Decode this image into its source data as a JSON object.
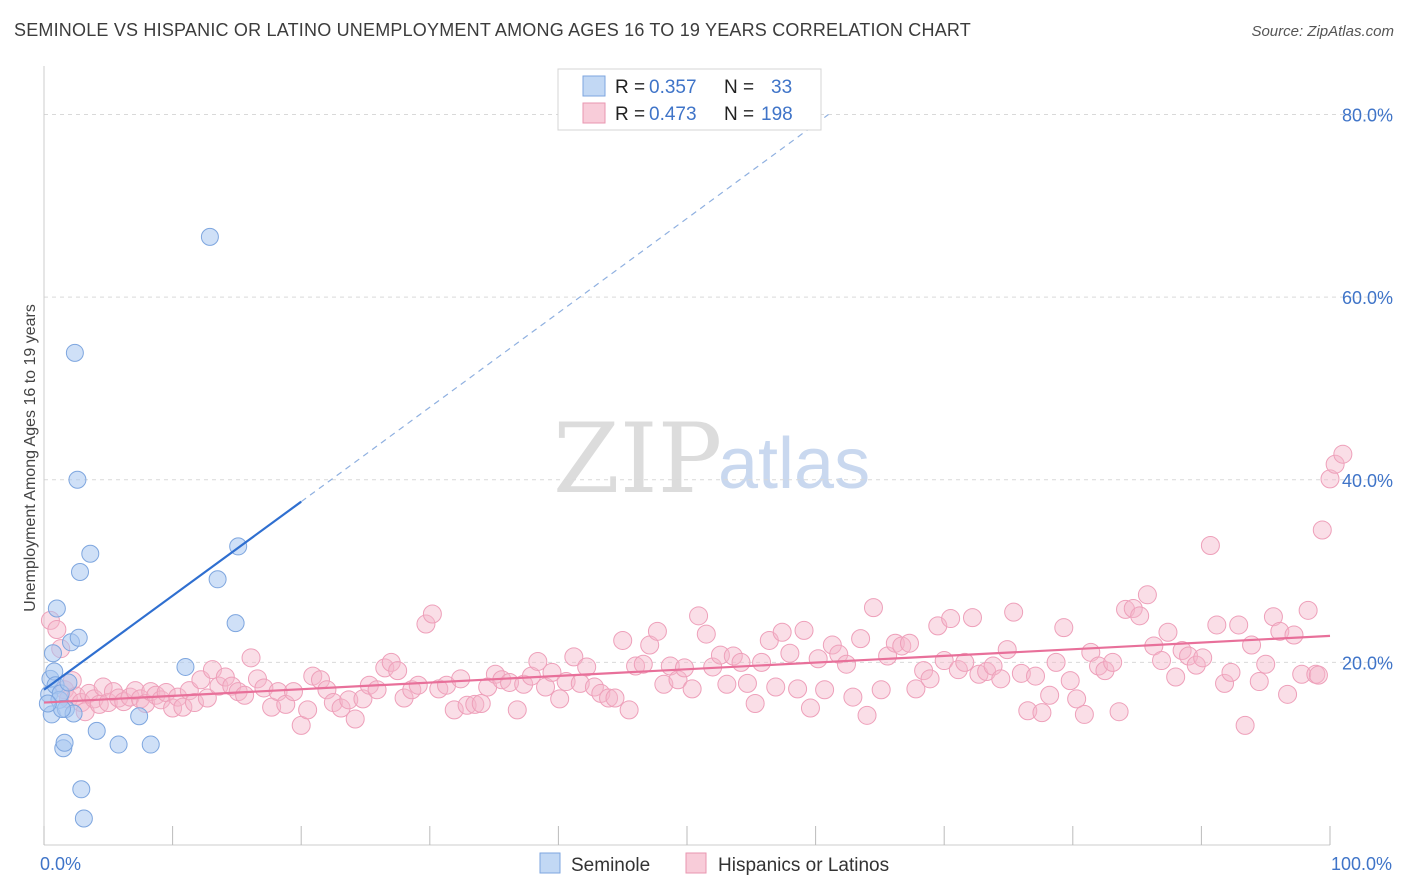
{
  "title": "SEMINOLE VS HISPANIC OR LATINO UNEMPLOYMENT AMONG AGES 16 TO 19 YEARS CORRELATION CHART",
  "source": "Source: ZipAtlas.com",
  "watermark": {
    "zip": "ZIP",
    "atlas": "atlas"
  },
  "chart_data": {
    "type": "scatter",
    "title": "SEMINOLE VS HISPANIC OR LATINO UNEMPLOYMENT AMONG AGES 16 TO 19 YEARS CORRELATION CHART",
    "xlabel": "",
    "ylabel": "Unemployment Among Ages 16 to 19 years",
    "xlim": [
      0,
      100
    ],
    "ylim": [
      0,
      84
    ],
    "x_tick_labels": [
      "0.0%",
      "100.0%"
    ],
    "y_ticks": [
      20,
      40,
      60,
      80
    ],
    "y_tick_labels": [
      "20.0%",
      "40.0%",
      "60.0%",
      "80.0%"
    ],
    "grid": "horizontal dashed",
    "legend_position": "top-center",
    "colors": {
      "seminole": "#a8c7f0",
      "seminole_line": "#2f6fd0",
      "hispanic": "#f5b6c9",
      "hispanic_line": "#e8709a",
      "accent": "#3f74c8"
    },
    "series": [
      {
        "name": "Seminole",
        "R": "0.357",
        "N": "33",
        "trend": {
          "x": [
            0,
            20
          ],
          "y": [
            17.0,
            37.6
          ],
          "dashed_to": [
            61,
            80
          ]
        },
        "points": [
          [
            0.4,
            16.5
          ],
          [
            0.5,
            18.2
          ],
          [
            0.6,
            14.3
          ],
          [
            0.7,
            21.0
          ],
          [
            0.8,
            19.0
          ],
          [
            0.9,
            17.5
          ],
          [
            1.0,
            25.9
          ],
          [
            1.2,
            15.9
          ],
          [
            1.3,
            16.6
          ],
          [
            1.5,
            10.6
          ],
          [
            1.6,
            11.2
          ],
          [
            1.7,
            14.9
          ],
          [
            1.9,
            17.8
          ],
          [
            2.1,
            22.2
          ],
          [
            2.3,
            14.4
          ],
          [
            2.4,
            53.9
          ],
          [
            2.6,
            40.0
          ],
          [
            2.7,
            22.7
          ],
          [
            2.8,
            29.9
          ],
          [
            2.9,
            6.1
          ],
          [
            3.1,
            2.9
          ],
          [
            3.6,
            31.9
          ],
          [
            4.1,
            12.5
          ],
          [
            5.8,
            11.0
          ],
          [
            7.4,
            14.1
          ],
          [
            8.3,
            11.0
          ],
          [
            11.0,
            19.5
          ],
          [
            12.9,
            66.6
          ],
          [
            13.5,
            29.1
          ],
          [
            14.9,
            24.3
          ],
          [
            15.1,
            32.7
          ],
          [
            1.4,
            14.9
          ],
          [
            0.3,
            15.5
          ]
        ]
      },
      {
        "name": "Hispanics or Latinos",
        "R": "0.473",
        "N": "198",
        "trend": {
          "x": [
            0,
            100
          ],
          "y": [
            15.6,
            22.9
          ]
        },
        "points": [
          [
            0.5,
            24.6
          ],
          [
            1.0,
            23.6
          ],
          [
            1.3,
            21.5
          ],
          [
            1.6,
            17.0
          ],
          [
            1.9,
            16.0
          ],
          [
            2.2,
            18.0
          ],
          [
            2.5,
            16.3
          ],
          [
            2.9,
            15.6
          ],
          [
            3.2,
            14.6
          ],
          [
            3.5,
            16.6
          ],
          [
            3.9,
            16.0
          ],
          [
            4.3,
            15.4
          ],
          [
            4.6,
            17.3
          ],
          [
            5.0,
            15.6
          ],
          [
            5.4,
            16.8
          ],
          [
            5.8,
            16.1
          ],
          [
            6.2,
            15.7
          ],
          [
            6.7,
            16.2
          ],
          [
            7.1,
            16.9
          ],
          [
            7.5,
            16.0
          ],
          [
            7.9,
            15.5
          ],
          [
            8.3,
            16.8
          ],
          [
            8.7,
            16.4
          ],
          [
            9.1,
            15.9
          ],
          [
            9.5,
            16.7
          ],
          [
            10.0,
            15.0
          ],
          [
            10.4,
            16.2
          ],
          [
            10.8,
            15.1
          ],
          [
            11.3,
            16.9
          ],
          [
            11.7,
            15.6
          ],
          [
            12.2,
            18.1
          ],
          [
            12.7,
            16.1
          ],
          [
            13.1,
            19.2
          ],
          [
            13.6,
            17.4
          ],
          [
            14.1,
            18.4
          ],
          [
            14.6,
            17.4
          ],
          [
            15.1,
            16.8
          ],
          [
            15.6,
            16.4
          ],
          [
            16.1,
            20.5
          ],
          [
            16.6,
            18.2
          ],
          [
            17.1,
            17.2
          ],
          [
            17.7,
            15.1
          ],
          [
            18.2,
            16.8
          ],
          [
            18.8,
            15.4
          ],
          [
            19.4,
            16.8
          ],
          [
            20.0,
            13.1
          ],
          [
            20.5,
            14.8
          ],
          [
            20.9,
            18.5
          ],
          [
            21.5,
            18.1
          ],
          [
            22.0,
            17.0
          ],
          [
            22.5,
            15.6
          ],
          [
            23.1,
            15.0
          ],
          [
            23.7,
            15.9
          ],
          [
            24.2,
            13.8
          ],
          [
            24.8,
            16.0
          ],
          [
            25.3,
            17.5
          ],
          [
            25.9,
            17.0
          ],
          [
            26.5,
            19.4
          ],
          [
            27.0,
            20.0
          ],
          [
            27.5,
            19.1
          ],
          [
            28.0,
            16.1
          ],
          [
            28.6,
            17.0
          ],
          [
            29.1,
            17.5
          ],
          [
            29.7,
            24.2
          ],
          [
            30.2,
            25.3
          ],
          [
            30.7,
            17.1
          ],
          [
            31.3,
            17.5
          ],
          [
            31.9,
            14.8
          ],
          [
            32.4,
            18.2
          ],
          [
            32.9,
            15.3
          ],
          [
            33.5,
            15.4
          ],
          [
            34.0,
            15.5
          ],
          [
            34.5,
            17.3
          ],
          [
            35.1,
            18.7
          ],
          [
            35.6,
            18.1
          ],
          [
            36.2,
            17.8
          ],
          [
            36.8,
            14.8
          ],
          [
            37.3,
            17.6
          ],
          [
            37.9,
            18.5
          ],
          [
            38.4,
            20.1
          ],
          [
            39.0,
            17.3
          ],
          [
            39.5,
            18.9
          ],
          [
            40.1,
            16.0
          ],
          [
            40.6,
            17.9
          ],
          [
            41.2,
            20.6
          ],
          [
            41.7,
            17.7
          ],
          [
            42.2,
            19.5
          ],
          [
            42.8,
            17.3
          ],
          [
            43.3,
            16.6
          ],
          [
            43.9,
            16.1
          ],
          [
            44.4,
            16.1
          ],
          [
            45.0,
            22.4
          ],
          [
            45.5,
            14.8
          ],
          [
            46.0,
            19.6
          ],
          [
            46.6,
            19.8
          ],
          [
            47.1,
            21.9
          ],
          [
            47.7,
            23.4
          ],
          [
            48.2,
            17.6
          ],
          [
            48.7,
            19.6
          ],
          [
            49.3,
            18.1
          ],
          [
            49.8,
            19.4
          ],
          [
            50.4,
            17.1
          ],
          [
            50.9,
            25.1
          ],
          [
            51.5,
            23.1
          ],
          [
            52.0,
            19.5
          ],
          [
            52.6,
            20.8
          ],
          [
            53.1,
            17.6
          ],
          [
            53.6,
            20.7
          ],
          [
            54.2,
            20.0
          ],
          [
            54.7,
            17.7
          ],
          [
            55.3,
            15.5
          ],
          [
            55.8,
            20.0
          ],
          [
            56.4,
            22.4
          ],
          [
            56.9,
            17.3
          ],
          [
            57.4,
            23.3
          ],
          [
            58.0,
            21.0
          ],
          [
            58.6,
            17.1
          ],
          [
            59.1,
            23.5
          ],
          [
            59.6,
            15.0
          ],
          [
            60.2,
            20.4
          ],
          [
            60.7,
            17.0
          ],
          [
            61.3,
            21.9
          ],
          [
            61.8,
            20.9
          ],
          [
            62.4,
            19.8
          ],
          [
            62.9,
            16.2
          ],
          [
            63.5,
            22.6
          ],
          [
            64.0,
            14.2
          ],
          [
            64.5,
            26.0
          ],
          [
            65.1,
            17.0
          ],
          [
            65.6,
            20.7
          ],
          [
            66.2,
            22.1
          ],
          [
            66.7,
            21.8
          ],
          [
            67.3,
            22.1
          ],
          [
            67.8,
            17.1
          ],
          [
            68.4,
            19.1
          ],
          [
            68.9,
            18.2
          ],
          [
            69.5,
            24.0
          ],
          [
            70.0,
            20.2
          ],
          [
            70.5,
            24.8
          ],
          [
            71.1,
            19.2
          ],
          [
            71.6,
            20.0
          ],
          [
            72.2,
            24.9
          ],
          [
            72.7,
            18.7
          ],
          [
            73.3,
            19.0
          ],
          [
            73.8,
            19.6
          ],
          [
            74.4,
            18.2
          ],
          [
            74.9,
            21.4
          ],
          [
            75.4,
            25.5
          ],
          [
            76.0,
            18.8
          ],
          [
            76.5,
            14.7
          ],
          [
            77.1,
            18.5
          ],
          [
            77.6,
            14.5
          ],
          [
            78.2,
            16.4
          ],
          [
            78.7,
            20.0
          ],
          [
            79.3,
            23.8
          ],
          [
            79.8,
            18.0
          ],
          [
            80.3,
            16.0
          ],
          [
            80.9,
            14.3
          ],
          [
            81.4,
            21.1
          ],
          [
            82.0,
            19.6
          ],
          [
            82.5,
            19.1
          ],
          [
            83.1,
            20.0
          ],
          [
            83.6,
            14.6
          ],
          [
            84.1,
            25.8
          ],
          [
            84.7,
            25.9
          ],
          [
            85.2,
            25.1
          ],
          [
            85.8,
            27.4
          ],
          [
            86.3,
            21.8
          ],
          [
            86.9,
            20.2
          ],
          [
            87.4,
            23.3
          ],
          [
            88.0,
            18.4
          ],
          [
            88.5,
            21.3
          ],
          [
            89.0,
            20.7
          ],
          [
            89.6,
            19.7
          ],
          [
            90.1,
            20.5
          ],
          [
            90.7,
            32.8
          ],
          [
            91.2,
            24.1
          ],
          [
            91.8,
            17.7
          ],
          [
            92.3,
            18.9
          ],
          [
            92.9,
            24.1
          ],
          [
            93.4,
            13.1
          ],
          [
            93.9,
            21.9
          ],
          [
            94.5,
            17.9
          ],
          [
            95.0,
            19.8
          ],
          [
            95.6,
            25.0
          ],
          [
            96.1,
            23.4
          ],
          [
            96.7,
            16.5
          ],
          [
            97.2,
            23.0
          ],
          [
            97.8,
            18.7
          ],
          [
            98.3,
            25.7
          ],
          [
            98.9,
            18.7
          ],
          [
            99.4,
            34.5
          ],
          [
            100.0,
            40.1
          ],
          [
            100.4,
            41.7
          ],
          [
            101.0,
            42.8
          ],
          [
            99.1,
            18.6
          ]
        ]
      }
    ]
  },
  "legend": {
    "row1": {
      "r_label": "R =",
      "r_value": "0.357",
      "n_label": "N =",
      "n_value": "33"
    },
    "row2": {
      "r_label": "R =",
      "r_value": "0.473",
      "n_label": "N =",
      "n_value": "198"
    }
  },
  "bottom_legend": {
    "seminole": "Seminole",
    "hispanic": "Hispanics or Latinos"
  }
}
